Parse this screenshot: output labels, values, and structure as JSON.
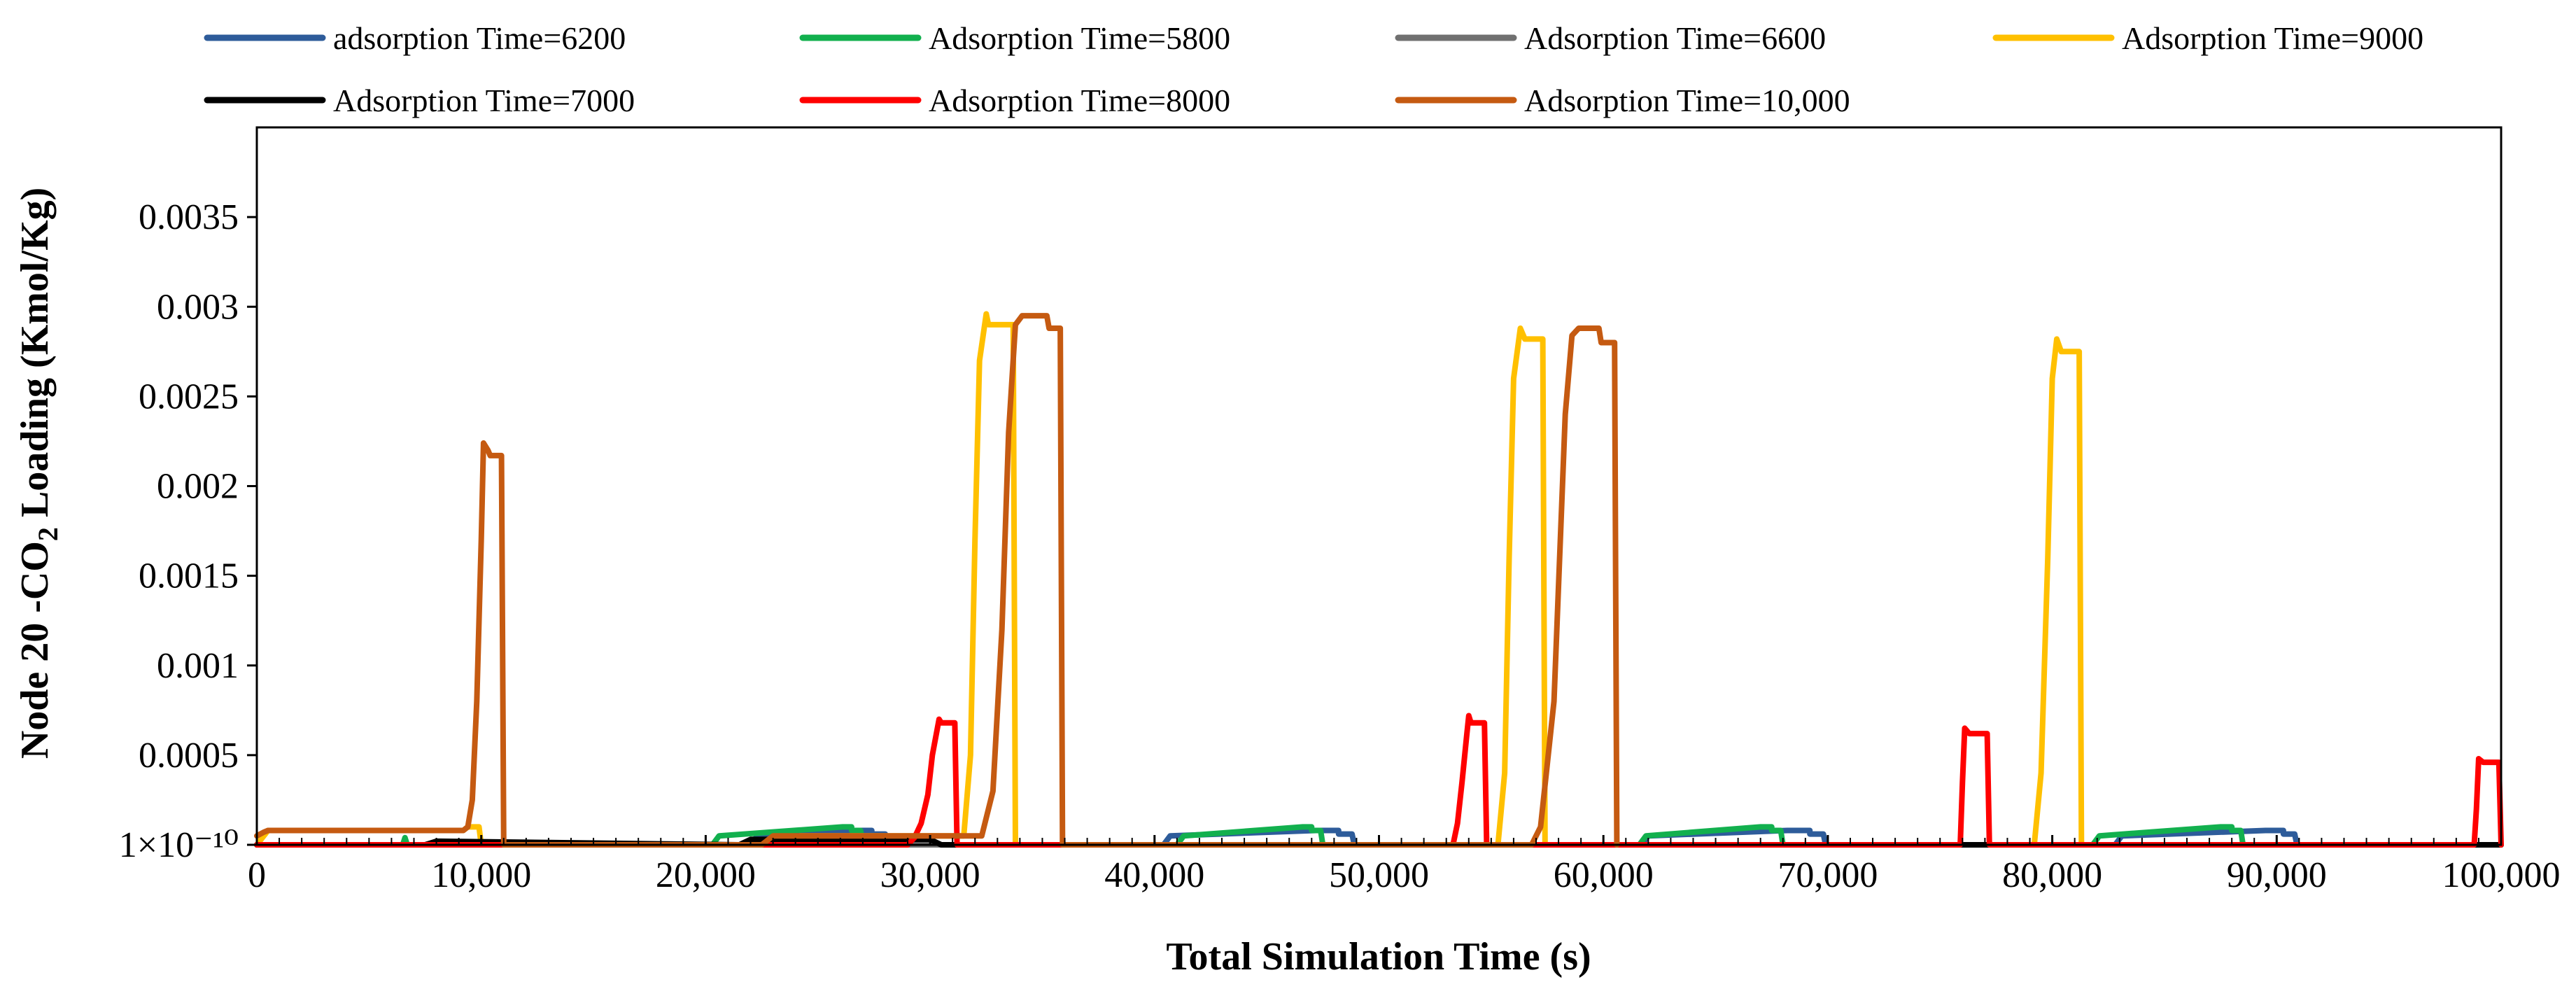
{
  "chart_data": {
    "type": "line",
    "title": "",
    "xlabel": "Total Simulation Time (s)",
    "ylabel": {
      "prefix": "Node 20 -CO",
      "subscript": "2",
      "suffix": " Loading (Kmol/Kg)"
    },
    "xlim": [
      0,
      100000
    ],
    "ylim": [
      0,
      0.004
    ],
    "grid": false,
    "legend_position": "top",
    "x_ticks": [
      {
        "value": 0,
        "label": "0"
      },
      {
        "value": 10000,
        "label": "10,000"
      },
      {
        "value": 20000,
        "label": "20,000"
      },
      {
        "value": 30000,
        "label": "30,000"
      },
      {
        "value": 40000,
        "label": "40,000"
      },
      {
        "value": 50000,
        "label": "50,000"
      },
      {
        "value": 60000,
        "label": "60,000"
      },
      {
        "value": 70000,
        "label": "70,000"
      },
      {
        "value": 80000,
        "label": "80,000"
      },
      {
        "value": 90000,
        "label": "90,000"
      },
      {
        "value": 100000,
        "label": "100,000"
      }
    ],
    "y_ticks": [
      {
        "value": 0,
        "label": "1×10⁻¹⁰"
      },
      {
        "value": 0.0005,
        "label": "0.0005"
      },
      {
        "value": 0.001,
        "label": "0.001"
      },
      {
        "value": 0.0015,
        "label": "0.0015"
      },
      {
        "value": 0.002,
        "label": "0.002"
      },
      {
        "value": 0.0025,
        "label": "0.0025"
      },
      {
        "value": 0.003,
        "label": "0.003"
      },
      {
        "value": 0.0035,
        "label": "0.0035"
      }
    ],
    "series": [
      {
        "name": "adsorption Time=6200",
        "color": "#2E5C9A",
        "x": [
          0,
          22000,
          22300,
          26500,
          27400,
          27400,
          28000,
          28100,
          40400,
          40700,
          47200,
          48200,
          48200,
          48800,
          48900,
          61700,
          62000,
          68200,
          69200,
          69200,
          69800,
          69900,
          82800,
          83100,
          89500,
          90300,
          90300,
          90800,
          90900,
          100000
        ],
        "y": [
          0,
          0,
          5e-05,
          8e-05,
          8e-05,
          6e-05,
          6e-05,
          0,
          0,
          5e-05,
          8e-05,
          8e-05,
          6e-05,
          6e-05,
          0,
          0,
          5e-05,
          8e-05,
          8e-05,
          6e-05,
          6e-05,
          0,
          0,
          5e-05,
          8e-05,
          8e-05,
          6e-05,
          6e-05,
          0,
          0
        ]
      },
      {
        "name": "Adsorption Time=5800",
        "color": "#12B04E",
        "x": [
          0,
          6500,
          6600,
          6700,
          20300,
          20600,
          26100,
          26500,
          26500,
          26900,
          27000,
          41000,
          41300,
          46600,
          47000,
          47000,
          47400,
          47500,
          61600,
          61900,
          67000,
          67500,
          67500,
          67900,
          68000,
          81800,
          82100,
          87500,
          88000,
          88000,
          88400,
          88500,
          100000
        ],
        "y": [
          0,
          0,
          4e-05,
          0,
          0,
          5e-05,
          0.0001,
          0.0001,
          8e-05,
          8e-05,
          0,
          0,
          5e-05,
          0.0001,
          0.0001,
          8e-05,
          8e-05,
          0,
          0,
          5e-05,
          0.0001,
          0.0001,
          8e-05,
          8e-05,
          0,
          0,
          5e-05,
          0.0001,
          0.0001,
          8e-05,
          8e-05,
          0,
          0
        ]
      },
      {
        "name": "Adsorption Time=6600",
        "color": "#707070",
        "x": [
          0,
          100000
        ],
        "y": [
          0,
          0
        ]
      },
      {
        "name": "Adsorption Time=9000",
        "color": "#FFC000",
        "x": [
          0,
          500,
          9200,
          9400,
          9600,
          9900,
          10000,
          24000,
          24200,
          31500,
          31800,
          32000,
          32200,
          32500,
          32600,
          32700,
          33700,
          33800,
          55300,
          55600,
          55800,
          56000,
          56300,
          56500,
          56600,
          57300,
          57400,
          79200,
          79500,
          79800,
          80000,
          80200,
          80400,
          80500,
          81200,
          81300,
          100000
        ],
        "y": [
          0,
          8e-05,
          8e-05,
          0.0001,
          0.0001,
          0.0001,
          0,
          0,
          5e-05,
          5e-05,
          0.0005,
          0.0017,
          0.0027,
          0.00296,
          0.0029,
          0.0029,
          0.0029,
          0,
          0,
          0.0004,
          0.0016,
          0.0026,
          0.00288,
          0.00282,
          0.00282,
          0.00282,
          0,
          0,
          0.0004,
          0.0016,
          0.0026,
          0.00282,
          0.00275,
          0.00275,
          0.00275,
          0,
          0
        ]
      },
      {
        "name": "Adsorption Time=7000",
        "color": "#000000",
        "x": [
          0,
          7500,
          8000,
          21500,
          22000,
          30000,
          30500,
          100000
        ],
        "y": [
          0,
          0,
          2e-05,
          0,
          3e-05,
          3e-05,
          0,
          0
        ]
      },
      {
        "name": "Adsorption Time=8000",
        "color": "#FF0000",
        "x": [
          0,
          29000,
          29300,
          29600,
          29900,
          30100,
          30400,
          30500,
          31100,
          31200,
          47200,
          53300,
          53500,
          53700,
          53900,
          54000,
          54100,
          54700,
          54800,
          75000,
          75900,
          76000,
          76100,
          76300,
          76400,
          76500,
          77100,
          77200,
          97000,
          98800,
          98900,
          99000,
          99200,
          99300,
          99400,
          99900,
          100000
        ],
        "y": [
          0,
          0,
          4e-05,
          0.00012,
          0.00028,
          0.0005,
          0.0007,
          0.00068,
          0.00068,
          0,
          0,
          0,
          0.00012,
          0.00035,
          0.0006,
          0.00072,
          0.00068,
          0.00068,
          0,
          0,
          0,
          0.00035,
          0.00065,
          0.00062,
          0.00062,
          0.00062,
          0.00062,
          0,
          0,
          0,
          0.0002,
          0.00048,
          0.00046,
          0.00046,
          0.00046,
          0.00046,
          0
        ]
      },
      {
        "name": "Adsorption Time=10,000",
        "color": "#C55A11",
        "x": [
          0,
          300,
          500,
          9200,
          9400,
          9600,
          9800,
          10000,
          10100,
          10300,
          10400,
          10900,
          11000,
          22500,
          23000,
          32300,
          32800,
          33200,
          33500,
          33800,
          34100,
          34500,
          35200,
          35300,
          35800,
          35900,
          56800,
          57200,
          57800,
          58300,
          58600,
          58900,
          59200,
          59800,
          59900,
          60500,
          60600
        ],
        "y": [
          5e-05,
          7e-05,
          8e-05,
          8e-05,
          0.0001,
          0.00025,
          0.0008,
          0.0017,
          0.00224,
          0.0022,
          0.00217,
          0.00217,
          0,
          0,
          5e-05,
          5e-05,
          0.0003,
          0.0012,
          0.0023,
          0.0029,
          0.00295,
          0.00295,
          0.00295,
          0.00288,
          0.00288,
          0,
          0,
          0.0001,
          0.0008,
          0.0024,
          0.00284,
          0.00288,
          0.00288,
          0.00288,
          0.0028,
          0.0028,
          0
        ]
      }
    ]
  }
}
